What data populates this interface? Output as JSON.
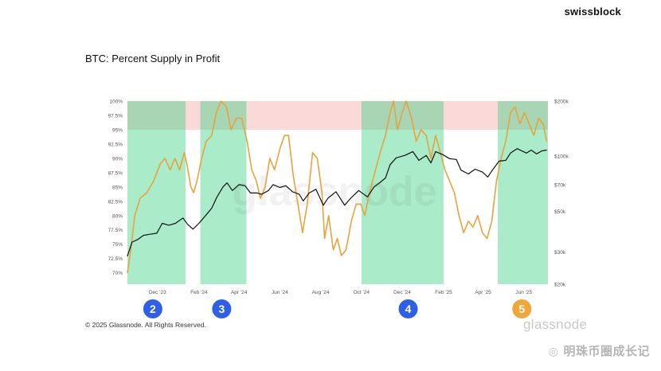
{
  "brand": "swissblock",
  "copyright": "© 2025 Glassnode. All Rights Reserved.",
  "glassnode_logo": "glassnode",
  "footer_caption": "明珠币圈成长记",
  "colors": {
    "profit_line": "#e8a33d",
    "price_line": "#111111",
    "green_zone": "#35d07f",
    "red_zone": "#f8b9b9",
    "marker_blue": "#2f5ee8",
    "marker_orange": "#efa63a"
  },
  "chart_data": {
    "type": "line",
    "title": "BTC: Percent Supply in Profit",
    "x_ticks": [
      "Dec '23",
      "Feb '24",
      "Apr '24",
      "Jun '24",
      "Aug '24",
      "Oct '24",
      "Dec '24",
      "Feb '25",
      "Apr '25",
      "Jun '25"
    ],
    "x_range": [
      "2023-10-17",
      "2025-07-07"
    ],
    "y_left": {
      "ticks": [
        "70%",
        "72.5%",
        "75%",
        "77.5%",
        "80%",
        "82.5%",
        "85%",
        "87.5%",
        "90%",
        "92.5%",
        "95%",
        "97.5%",
        "100%"
      ],
      "range": [
        68,
        100
      ]
    },
    "y_right": {
      "scale": "log",
      "ticks": [
        "$20k",
        "$30k",
        "$50k",
        "$70k",
        "$100k",
        "$200k"
      ],
      "range": [
        20000,
        200000
      ]
    },
    "green_zones": [
      [
        "2023-10-17",
        "2024-01-12"
      ],
      [
        "2024-02-03",
        "2024-04-12"
      ],
      [
        "2024-10-01",
        "2025-02-01"
      ],
      [
        "2025-04-23",
        "2025-07-07"
      ]
    ],
    "red_band": {
      "from": 95,
      "to": 100
    },
    "markers": [
      {
        "label": "2",
        "date": "2023-11-24",
        "color": "blue"
      },
      {
        "label": "3",
        "date": "2024-03-06",
        "color": "blue"
      },
      {
        "label": "4",
        "date": "2024-12-10",
        "color": "blue"
      },
      {
        "label": "5",
        "date": "2025-05-29",
        "color": "orange"
      }
    ],
    "series": [
      {
        "axis": "left",
        "points": [
          [
            "2023-10-17",
            70
          ],
          [
            "2023-10-22",
            74
          ],
          [
            "2023-10-28",
            80
          ],
          [
            "2023-11-05",
            83
          ],
          [
            "2023-11-15",
            84
          ],
          [
            "2023-11-25",
            86
          ],
          [
            "2023-12-05",
            89
          ],
          [
            "2023-12-12",
            90
          ],
          [
            "2023-12-20",
            88
          ],
          [
            "2023-12-27",
            90
          ],
          [
            "2024-01-03",
            88
          ],
          [
            "2024-01-10",
            91
          ],
          [
            "2024-01-14",
            89
          ],
          [
            "2024-01-20",
            85
          ],
          [
            "2024-01-24",
            84
          ],
          [
            "2024-01-29",
            86
          ],
          [
            "2024-02-05",
            90
          ],
          [
            "2024-02-12",
            93
          ],
          [
            "2024-02-20",
            94
          ],
          [
            "2024-02-27",
            98
          ],
          [
            "2024-03-05",
            100
          ],
          [
            "2024-03-13",
            99
          ],
          [
            "2024-03-20",
            95
          ],
          [
            "2024-03-28",
            97
          ],
          [
            "2024-04-05",
            97
          ],
          [
            "2024-04-13",
            93
          ],
          [
            "2024-04-20",
            88
          ],
          [
            "2024-04-27",
            86
          ],
          [
            "2024-05-03",
            83
          ],
          [
            "2024-05-10",
            85
          ],
          [
            "2024-05-17",
            90
          ],
          [
            "2024-05-24",
            88
          ],
          [
            "2024-06-02",
            92
          ],
          [
            "2024-06-08",
            94
          ],
          [
            "2024-06-14",
            94
          ],
          [
            "2024-06-21",
            87
          ],
          [
            "2024-06-28",
            82
          ],
          [
            "2024-07-05",
            77
          ],
          [
            "2024-07-12",
            82
          ],
          [
            "2024-07-20",
            91
          ],
          [
            "2024-07-27",
            90
          ],
          [
            "2024-08-03",
            84
          ],
          [
            "2024-08-07",
            76
          ],
          [
            "2024-08-13",
            80
          ],
          [
            "2024-08-20",
            74
          ],
          [
            "2024-08-26",
            76
          ],
          [
            "2024-09-01",
            73
          ],
          [
            "2024-09-08",
            74
          ],
          [
            "2024-09-16",
            79
          ],
          [
            "2024-09-23",
            82
          ],
          [
            "2024-09-30",
            82
          ],
          [
            "2024-10-06",
            80
          ],
          [
            "2024-10-13",
            84
          ],
          [
            "2024-10-20",
            87
          ],
          [
            "2024-10-29",
            91
          ],
          [
            "2024-11-06",
            94
          ],
          [
            "2024-11-13",
            98
          ],
          [
            "2024-11-18",
            100
          ],
          [
            "2024-11-24",
            95
          ],
          [
            "2024-12-01",
            98
          ],
          [
            "2024-12-07",
            100
          ],
          [
            "2024-12-15",
            97
          ],
          [
            "2024-12-22",
            93
          ],
          [
            "2024-12-29",
            95
          ],
          [
            "2025-01-06",
            94
          ],
          [
            "2025-01-13",
            90
          ],
          [
            "2025-01-20",
            94
          ],
          [
            "2025-01-27",
            91
          ],
          [
            "2025-02-03",
            88
          ],
          [
            "2025-02-10",
            86
          ],
          [
            "2025-02-17",
            84
          ],
          [
            "2025-02-24",
            80
          ],
          [
            "2025-03-03",
            77
          ],
          [
            "2025-03-10",
            79
          ],
          [
            "2025-03-17",
            78
          ],
          [
            "2025-03-24",
            80
          ],
          [
            "2025-03-31",
            77
          ],
          [
            "2025-04-07",
            76
          ],
          [
            "2025-04-14",
            79
          ],
          [
            "2025-04-21",
            86
          ],
          [
            "2025-04-28",
            90
          ],
          [
            "2025-05-05",
            93
          ],
          [
            "2025-05-12",
            98
          ],
          [
            "2025-05-19",
            99
          ],
          [
            "2025-05-26",
            96
          ],
          [
            "2025-06-02",
            98
          ],
          [
            "2025-06-09",
            96
          ],
          [
            "2025-06-16",
            94
          ],
          [
            "2025-06-23",
            97
          ],
          [
            "2025-06-30",
            96
          ],
          [
            "2025-07-05",
            93
          ]
        ]
      },
      {
        "axis": "right",
        "points": [
          [
            "2023-10-17",
            28500
          ],
          [
            "2023-10-24",
            34000
          ],
          [
            "2023-11-01",
            35000
          ],
          [
            "2023-11-10",
            37000
          ],
          [
            "2023-11-20",
            37500
          ],
          [
            "2023-11-30",
            38000
          ],
          [
            "2023-12-08",
            43000
          ],
          [
            "2023-12-18",
            42000
          ],
          [
            "2023-12-28",
            43000
          ],
          [
            "2024-01-08",
            46000
          ],
          [
            "2024-01-15",
            42500
          ],
          [
            "2024-01-23",
            40000
          ],
          [
            "2024-02-01",
            43000
          ],
          [
            "2024-02-10",
            47000
          ],
          [
            "2024-02-20",
            52000
          ],
          [
            "2024-02-28",
            60000
          ],
          [
            "2024-03-08",
            68000
          ],
          [
            "2024-03-14",
            71500
          ],
          [
            "2024-03-22",
            65000
          ],
          [
            "2024-04-01",
            70000
          ],
          [
            "2024-04-10",
            69000
          ],
          [
            "2024-04-18",
            63000
          ],
          [
            "2024-04-28",
            63000
          ],
          [
            "2024-05-05",
            62000
          ],
          [
            "2024-05-15",
            65000
          ],
          [
            "2024-05-22",
            70000
          ],
          [
            "2024-06-01",
            67500
          ],
          [
            "2024-06-10",
            69000
          ],
          [
            "2024-06-20",
            64000
          ],
          [
            "2024-06-30",
            62000
          ],
          [
            "2024-07-06",
            57000
          ],
          [
            "2024-07-15",
            63000
          ],
          [
            "2024-07-25",
            66000
          ],
          [
            "2024-08-05",
            54000
          ],
          [
            "2024-08-12",
            59000
          ],
          [
            "2024-08-24",
            64000
          ],
          [
            "2024-09-06",
            54000
          ],
          [
            "2024-09-15",
            59000
          ],
          [
            "2024-09-27",
            65000
          ],
          [
            "2024-10-10",
            60000
          ],
          [
            "2024-10-20",
            68000
          ],
          [
            "2024-10-29",
            72000
          ],
          [
            "2024-11-06",
            76000
          ],
          [
            "2024-11-13",
            90000
          ],
          [
            "2024-11-22",
            98000
          ],
          [
            "2024-12-05",
            101000
          ],
          [
            "2024-12-17",
            106000
          ],
          [
            "2024-12-26",
            95000
          ],
          [
            "2025-01-06",
            101000
          ],
          [
            "2025-01-13",
            92000
          ],
          [
            "2025-01-20",
            106000
          ],
          [
            "2025-01-31",
            102000
          ],
          [
            "2025-02-10",
            97000
          ],
          [
            "2025-02-20",
            96000
          ],
          [
            "2025-02-27",
            84000
          ],
          [
            "2025-03-10",
            80000
          ],
          [
            "2025-03-20",
            85000
          ],
          [
            "2025-03-31",
            82000
          ],
          [
            "2025-04-08",
            77000
          ],
          [
            "2025-04-15",
            84000
          ],
          [
            "2025-04-25",
            94000
          ],
          [
            "2025-05-05",
            95000
          ],
          [
            "2025-05-12",
            104000
          ],
          [
            "2025-05-22",
            110000
          ],
          [
            "2025-06-05",
            104000
          ],
          [
            "2025-06-12",
            108000
          ],
          [
            "2025-06-20",
            103000
          ],
          [
            "2025-06-28",
            107000
          ],
          [
            "2025-07-05",
            108000
          ]
        ]
      }
    ]
  }
}
